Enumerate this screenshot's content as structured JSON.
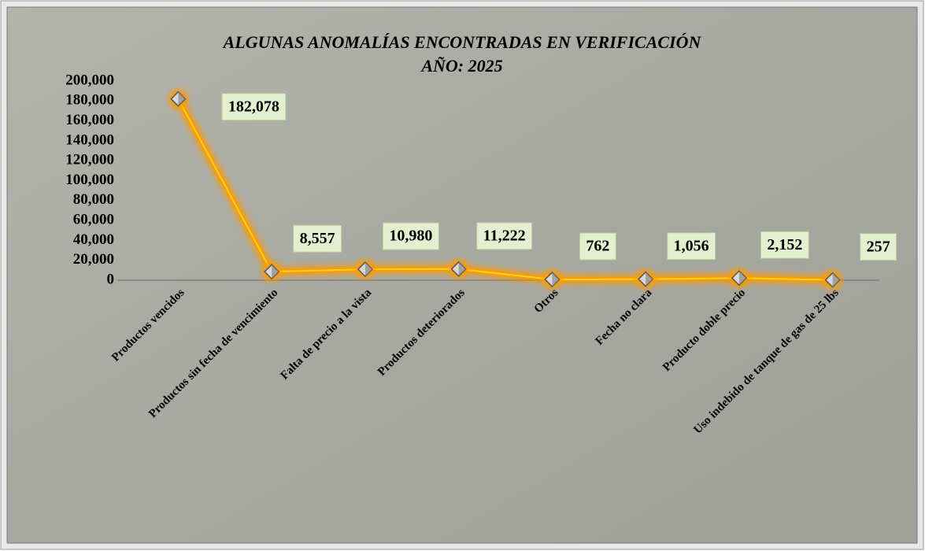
{
  "chart_data": {
    "type": "line",
    "title": "ALGUNAS ANOMALÍAS ENCONTRADAS EN VERIFICACIÓN",
    "subtitle": "AÑO: 2025",
    "categories": [
      "Productos vencidos",
      "Productos sin fecha de vencimiento",
      "Falta de precio a la vista",
      "Productos deteriorados",
      "Otros",
      "Fecha no clara",
      "Producto doble precio",
      "Uso indebido de tanque de gas de 25 lbs"
    ],
    "values": [
      182078,
      8557,
      10980,
      11222,
      762,
      1056,
      2152,
      257
    ],
    "value_labels": [
      "182,078",
      "8,557",
      "10,980",
      "11,222",
      "762",
      "1,056",
      "2,152",
      "257"
    ],
    "color": "#ff9a00",
    "ylim": [
      0,
      200000
    ],
    "yticks": [
      0,
      {
        "value": 20000,
        "label": "20,000"
      },
      {
        "value": 40000,
        "label": "40,000"
      },
      {
        "value": 60000,
        "label": "60,000"
      },
      {
        "value": 80000,
        "label": "80,000"
      },
      {
        "value": 100000,
        "label": "100,000"
      },
      {
        "value": 120000,
        "label": "120,000"
      },
      {
        "value": 140000,
        "label": "140,000"
      },
      {
        "value": 160000,
        "label": "160,000"
      },
      {
        "value": 180000,
        "label": "180,000"
      },
      {
        "value": 200000,
        "label": "200,000"
      }
    ],
    "grid": false
  }
}
